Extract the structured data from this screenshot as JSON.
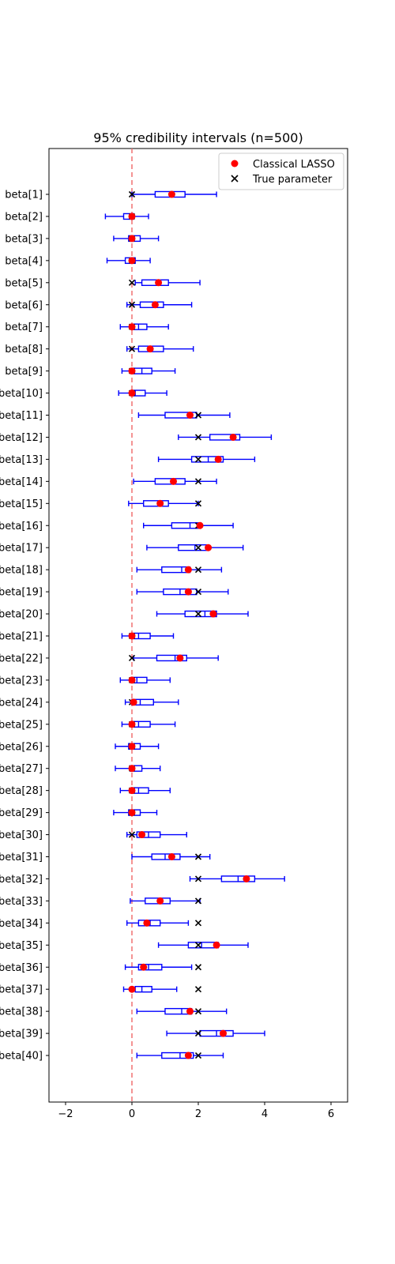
{
  "chart_data": {
    "type": "boxplot",
    "title": "95% credibility intervals (n=500)",
    "orientation": "horizontal",
    "xlim": [
      -2.5,
      6.5
    ],
    "xticks": [
      -2,
      0,
      2,
      4,
      6
    ],
    "reference_line": {
      "x": 0,
      "style": "dashed",
      "color": "#f07070"
    },
    "legend": {
      "placement": "top-right",
      "items": [
        {
          "label": "Classical LASSO",
          "marker": "circle",
          "color": "#ff0000"
        },
        {
          "label": "True parameter",
          "marker": "x",
          "color": "#000000"
        }
      ]
    },
    "colors": {
      "box": "#0000ff",
      "lasso": "#ff0000",
      "true": "#000000"
    },
    "categories": [
      "beta[1]",
      "beta[2]",
      "beta[3]",
      "beta[4]",
      "beta[5]",
      "beta[6]",
      "beta[7]",
      "beta[8]",
      "beta[9]",
      "beta[10]",
      "beta[11]",
      "beta[12]",
      "beta[13]",
      "beta[14]",
      "beta[15]",
      "beta[16]",
      "beta[17]",
      "beta[18]",
      "beta[19]",
      "beta[20]",
      "beta[21]",
      "beta[22]",
      "beta[23]",
      "beta[24]",
      "beta[25]",
      "beta[26]",
      "beta[27]",
      "beta[28]",
      "beta[29]",
      "beta[30]",
      "beta[31]",
      "beta[32]",
      "beta[33]",
      "beta[34]",
      "beta[35]",
      "beta[36]",
      "beta[37]",
      "beta[38]",
      "beta[39]",
      "beta[40]"
    ],
    "boxes": [
      {
        "wlo": 0.0,
        "q1": 0.7,
        "med": 1.2,
        "q3": 1.6,
        "whi": 2.55
      },
      {
        "wlo": -0.8,
        "q1": -0.25,
        "med": -0.05,
        "q3": 0.05,
        "whi": 0.5
      },
      {
        "wlo": -0.55,
        "q1": -0.1,
        "med": 0.0,
        "q3": 0.25,
        "whi": 0.8
      },
      {
        "wlo": -0.75,
        "q1": -0.2,
        "med": 0.0,
        "q3": 0.1,
        "whi": 0.55
      },
      {
        "wlo": 0.1,
        "q1": 0.3,
        "med": 0.75,
        "q3": 1.1,
        "whi": 2.05
      },
      {
        "wlo": -0.15,
        "q1": 0.25,
        "med": 0.7,
        "q3": 0.95,
        "whi": 1.8
      },
      {
        "wlo": -0.35,
        "q1": 0.0,
        "med": 0.2,
        "q3": 0.45,
        "whi": 1.1
      },
      {
        "wlo": -0.15,
        "q1": 0.2,
        "med": 0.55,
        "q3": 0.95,
        "whi": 1.85
      },
      {
        "wlo": -0.3,
        "q1": 0.05,
        "med": 0.3,
        "q3": 0.6,
        "whi": 1.3
      },
      {
        "wlo": -0.4,
        "q1": 0.0,
        "med": 0.1,
        "q3": 0.4,
        "whi": 1.05
      },
      {
        "wlo": 0.2,
        "q1": 1.0,
        "med": 1.7,
        "q3": 1.95,
        "whi": 2.95
      },
      {
        "wlo": 1.4,
        "q1": 2.35,
        "med": 3.05,
        "q3": 3.25,
        "whi": 4.2
      },
      {
        "wlo": 0.8,
        "q1": 1.8,
        "med": 2.3,
        "q3": 2.75,
        "whi": 3.7
      },
      {
        "wlo": 0.05,
        "q1": 0.7,
        "med": 1.25,
        "q3": 1.6,
        "whi": 2.55
      },
      {
        "wlo": -0.1,
        "q1": 0.35,
        "med": 0.8,
        "q3": 1.1,
        "whi": 2.0
      },
      {
        "wlo": 0.35,
        "q1": 1.2,
        "med": 1.75,
        "q3": 2.05,
        "whi": 3.05
      },
      {
        "wlo": 0.45,
        "q1": 1.4,
        "med": 1.9,
        "q3": 2.3,
        "whi": 3.35
      },
      {
        "wlo": 0.15,
        "q1": 0.9,
        "med": 1.5,
        "q3": 1.75,
        "whi": 2.7
      },
      {
        "wlo": 0.15,
        "q1": 0.95,
        "med": 1.45,
        "q3": 1.95,
        "whi": 2.9
      },
      {
        "wlo": 0.75,
        "q1": 1.6,
        "med": 2.2,
        "q3": 2.55,
        "whi": 3.5
      },
      {
        "wlo": -0.3,
        "q1": 0.05,
        "med": 0.2,
        "q3": 0.55,
        "whi": 1.25
      },
      {
        "wlo": 0.05,
        "q1": 0.75,
        "med": 1.3,
        "q3": 1.65,
        "whi": 2.6
      },
      {
        "wlo": -0.35,
        "q1": 0.0,
        "med": 0.15,
        "q3": 0.45,
        "whi": 1.15
      },
      {
        "wlo": -0.2,
        "q1": 0.0,
        "med": 0.25,
        "q3": 0.65,
        "whi": 1.4
      },
      {
        "wlo": -0.3,
        "q1": 0.0,
        "med": 0.2,
        "q3": 0.55,
        "whi": 1.3
      },
      {
        "wlo": -0.5,
        "q1": -0.1,
        "med": 0.05,
        "q3": 0.25,
        "whi": 0.8
      },
      {
        "wlo": -0.5,
        "q1": -0.05,
        "med": 0.05,
        "q3": 0.3,
        "whi": 0.85
      },
      {
        "wlo": -0.35,
        "q1": 0.0,
        "med": 0.2,
        "q3": 0.5,
        "whi": 1.15
      },
      {
        "wlo": -0.55,
        "q1": -0.1,
        "med": 0.05,
        "q3": 0.25,
        "whi": 0.75
      },
      {
        "wlo": -0.15,
        "q1": 0.15,
        "med": 0.5,
        "q3": 0.85,
        "whi": 1.65
      },
      {
        "wlo": 0.0,
        "q1": 0.6,
        "med": 1.0,
        "q3": 1.45,
        "whi": 2.35
      },
      {
        "wlo": 1.75,
        "q1": 2.7,
        "med": 3.2,
        "q3": 3.7,
        "whi": 4.6
      },
      {
        "wlo": -0.05,
        "q1": 0.4,
        "med": 0.85,
        "q3": 1.15,
        "whi": 2.05
      },
      {
        "wlo": -0.15,
        "q1": 0.2,
        "med": 0.55,
        "q3": 0.85,
        "whi": 1.7
      },
      {
        "wlo": 0.8,
        "q1": 1.7,
        "med": 2.1,
        "q3": 2.6,
        "whi": 3.5
      },
      {
        "wlo": -0.2,
        "q1": 0.2,
        "med": 0.5,
        "q3": 0.9,
        "whi": 1.8
      },
      {
        "wlo": -0.25,
        "q1": 0.1,
        "med": 0.3,
        "q3": 0.6,
        "whi": 1.35
      },
      {
        "wlo": 0.15,
        "q1": 1.0,
        "med": 1.5,
        "q3": 1.8,
        "whi": 2.85
      },
      {
        "wlo": 1.05,
        "q1": 2.05,
        "med": 2.55,
        "q3": 3.05,
        "whi": 4.0
      },
      {
        "wlo": 0.15,
        "q1": 0.9,
        "med": 1.45,
        "q3": 1.85,
        "whi": 2.75
      }
    ],
    "lasso": [
      1.2,
      0.0,
      0.0,
      0.0,
      0.8,
      0.7,
      0.0,
      0.55,
      0.0,
      0.0,
      1.75,
      3.05,
      2.6,
      1.25,
      0.85,
      2.05,
      2.3,
      1.7,
      1.7,
      2.45,
      0.0,
      1.45,
      0.0,
      0.05,
      0.0,
      0.0,
      0.0,
      0.0,
      0.0,
      0.3,
      1.2,
      3.45,
      0.85,
      0.45,
      2.55,
      0.35,
      0.0,
      1.75,
      2.75,
      1.7
    ],
    "true": [
      0,
      0,
      0,
      0,
      0,
      0,
      0,
      0,
      0,
      0,
      2,
      2,
      2,
      2,
      2,
      2,
      2,
      2,
      2,
      2,
      0,
      0,
      0,
      0,
      0,
      0,
      0,
      0,
      0,
      0,
      2,
      2,
      2,
      2,
      2,
      2,
      2,
      2,
      2,
      2
    ]
  }
}
